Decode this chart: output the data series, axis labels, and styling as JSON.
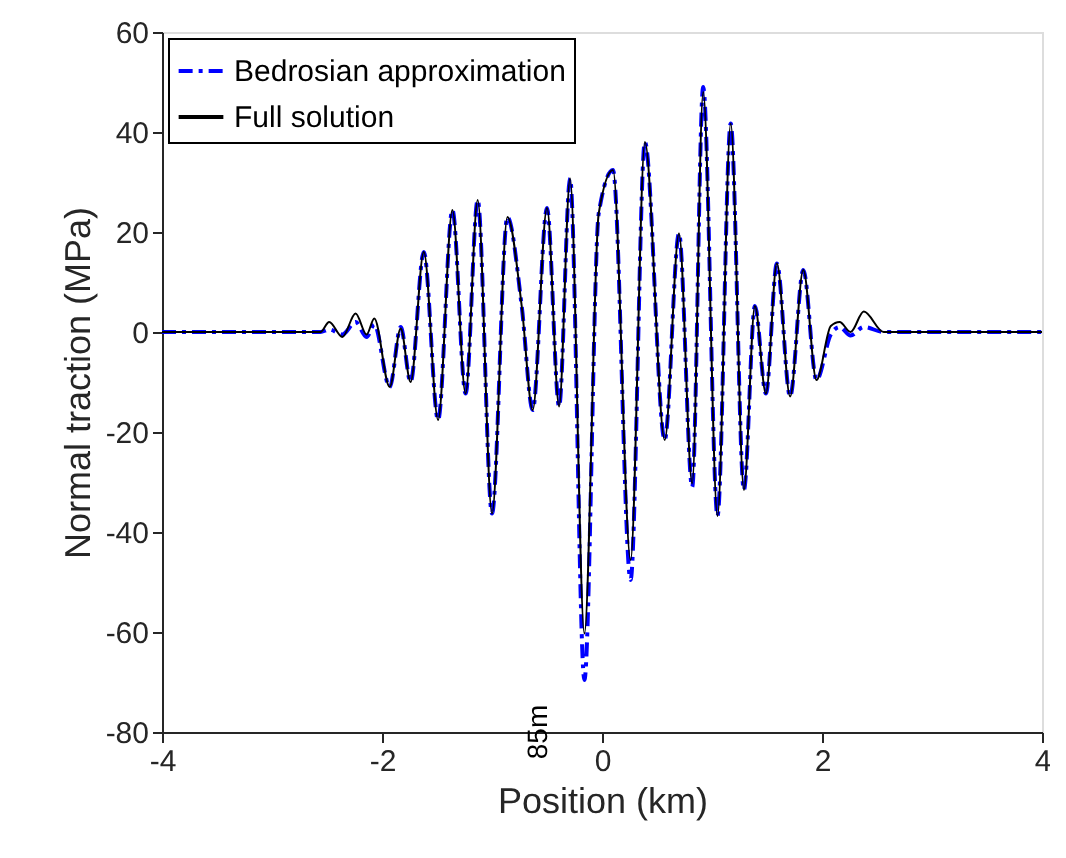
{
  "chart_data": {
    "type": "line",
    "xlabel": "Position (km)",
    "ylabel": "Normal traction (MPa)",
    "xlim": [
      -4,
      4
    ],
    "xticks": [
      -4,
      -2,
      0,
      2,
      4
    ],
    "ylim": [
      -80,
      60
    ],
    "yticks": [
      -80,
      -60,
      -40,
      -20,
      0,
      20,
      40,
      60
    ],
    "grid": false,
    "legend": "top left",
    "marker": "none",
    "annotations": [
      "85m"
    ],
    "series": [
      {
        "name": "Bedrosian approximation",
        "color": "#0000ff",
        "line_style": "dashed",
        "x": [
          -4,
          -2.56,
          -2.48,
          -2.36,
          -2.24,
          -2.14,
          -2.07,
          -1.93,
          -1.83,
          -1.74,
          -1.62,
          -1.49,
          -1.36,
          -1.24,
          -1.13,
          -1.0,
          -0.86,
          -0.73,
          -0.63,
          -0.5,
          -0.39,
          -0.29,
          -0.16,
          -0.03,
          0.1,
          0.26,
          0.39,
          0.57,
          0.7,
          0.82,
          0.92,
          1.05,
          1.17,
          1.29,
          1.39,
          1.49,
          1.59,
          1.71,
          1.83,
          1.95,
          2.08,
          2.16,
          2.26,
          2.38,
          2.56,
          4
        ],
        "values": [
          0,
          0,
          0.5,
          -0.5,
          2,
          -1,
          1.5,
          -11,
          1,
          -10,
          16,
          -17.6,
          24.4,
          -12.3,
          26.4,
          -36.3,
          23,
          5.2,
          -15.6,
          24.8,
          -14.9,
          30.7,
          -69.6,
          23.7,
          32.4,
          -49.6,
          38,
          -21.6,
          19.7,
          -31,
          49,
          -36.8,
          41.7,
          -31.6,
          5.2,
          -12.3,
          13.7,
          -12.9,
          12.4,
          -9.6,
          -0.5,
          1,
          -0.7,
          1,
          0,
          0
        ]
      },
      {
        "name": "Full solution",
        "color": "#000000",
        "line_style": "solid",
        "x": [
          -4,
          -2.56,
          -2.48,
          -2.36,
          -2.24,
          -2.14,
          -2.07,
          -1.93,
          -1.83,
          -1.74,
          -1.62,
          -1.49,
          -1.36,
          -1.24,
          -1.13,
          -1.0,
          -0.86,
          -0.73,
          -0.63,
          -0.5,
          -0.39,
          -0.29,
          -0.16,
          -0.03,
          0.1,
          0.26,
          0.39,
          0.57,
          0.7,
          0.82,
          0.92,
          1.05,
          1.17,
          1.29,
          1.39,
          1.49,
          1.59,
          1.71,
          1.83,
          1.95,
          2.08,
          2.16,
          2.26,
          2.38,
          2.56,
          4
        ],
        "values": [
          0,
          0,
          2,
          -1,
          3.7,
          -0.5,
          2.7,
          -11,
          0.7,
          -10,
          16,
          -17.6,
          24.4,
          -12.3,
          26.4,
          -36.3,
          23,
          5.2,
          -15.6,
          24.8,
          -14.9,
          30.7,
          -60.3,
          23.7,
          32.4,
          -45.6,
          38,
          -21.6,
          19.7,
          -30.3,
          48,
          -36.8,
          41.7,
          -31.6,
          5.2,
          -12.3,
          13.7,
          -12.9,
          12.4,
          -9.6,
          1.2,
          2,
          0,
          4.1,
          0,
          0
        ]
      }
    ]
  }
}
